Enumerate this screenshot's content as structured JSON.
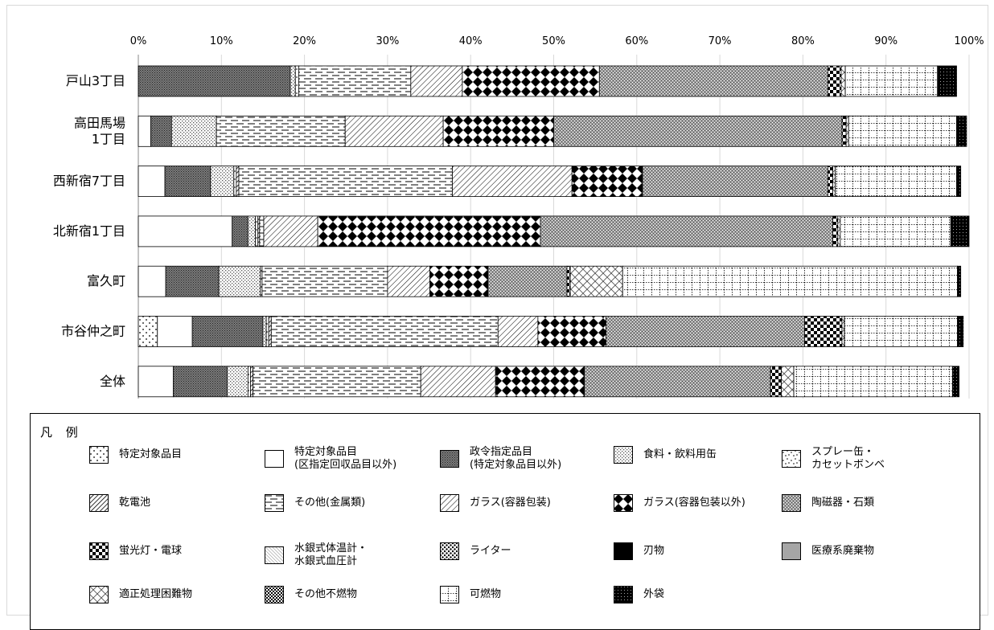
{
  "chart_data": {
    "type": "bar",
    "orientation": "horizontal",
    "stacked": "percent",
    "categories": [
      "戸山3丁目",
      "高田馬場\n1丁目",
      "西新宿7丁目",
      "北新宿1丁目",
      "富久町",
      "市谷仲之町",
      "全体"
    ],
    "xlim": [
      0,
      100
    ],
    "xticks": [
      "0%",
      "10%",
      "20%",
      "30%",
      "40%",
      "50%",
      "60%",
      "70%",
      "80%",
      "90%",
      "100%"
    ],
    "grid": true,
    "legend_position": "bottom",
    "legend_title": "凡 例",
    "series": [
      {
        "name": "特定対象品目",
        "pattern": "sparse-dots",
        "values": [
          0,
          0,
          0,
          0,
          0,
          2.3,
          0
        ]
      },
      {
        "name": "特定対象品目\n(区指定回収品目以外)",
        "pattern": "blank",
        "values": [
          0,
          1.5,
          3.2,
          11.3,
          3.3,
          4.2,
          4.2
        ]
      },
      {
        "name": "政令指定品目\n(特定対象品目以外)",
        "pattern": "dense-checker",
        "values": [
          18.3,
          2.5,
          5.5,
          1.9,
          6.4,
          8.5,
          6.5
        ]
      },
      {
        "name": "食料・飲料用缶",
        "pattern": "fine-dots",
        "values": [
          0.6,
          5.4,
          2.8,
          0.9,
          5.0,
          0.4,
          2.5
        ]
      },
      {
        "name": "スプレー缶・\nカセットボンベ",
        "pattern": "scattered-dots",
        "values": [
          0.4,
          0,
          0.3,
          0.3,
          0.2,
          0.3,
          0.3
        ]
      },
      {
        "name": "乾電池",
        "pattern": "dense-diagonal",
        "values": [
          0,
          0,
          0.3,
          0.2,
          0,
          0.3,
          0.3
        ]
      },
      {
        "name": "その他(金属類)",
        "pattern": "dashed-lines",
        "values": [
          13.5,
          15.5,
          25.7,
          0.5,
          15.1,
          27.3,
          20.2
        ]
      },
      {
        "name": "ガラス(容器包装)",
        "pattern": "wide-diagonal",
        "values": [
          6.2,
          11.8,
          14.4,
          6.5,
          5.1,
          4.8,
          9.0
        ]
      },
      {
        "name": "ガラス(容器包装以外)",
        "pattern": "diamonds",
        "values": [
          16.5,
          13.3,
          8.5,
          26.8,
          7.0,
          8.2,
          10.7
        ]
      },
      {
        "name": "陶磁器・石類",
        "pattern": "small-diamond-dots",
        "values": [
          27.5,
          34.7,
          22.3,
          35.2,
          9.5,
          23.9,
          22.4
        ]
      },
      {
        "name": "蛍光灯・電球",
        "pattern": "large-checker",
        "values": [
          1.6,
          0.5,
          0.6,
          0.6,
          0.4,
          4.5,
          1.3
        ]
      },
      {
        "name": "水銀式体温計・\n水銀式血圧計",
        "pattern": "thin-diagonal",
        "values": [
          0,
          0,
          0,
          0,
          0,
          0,
          0
        ]
      },
      {
        "name": "ライター",
        "pattern": "fuzzy-dots",
        "values": [
          0,
          0,
          0,
          0,
          0,
          0,
          0
        ]
      },
      {
        "name": "刃物",
        "pattern": "solid-black",
        "values": [
          0,
          0,
          0,
          0,
          0,
          0,
          0
        ]
      },
      {
        "name": "医療系廃棄物",
        "pattern": "solid-gray",
        "values": [
          0,
          0,
          0,
          0,
          0,
          0,
          0
        ]
      },
      {
        "name": "適正処理困難物",
        "pattern": "cross-hatch",
        "values": [
          0.5,
          0.3,
          0.3,
          0.3,
          6.3,
          0.3,
          1.5
        ]
      },
      {
        "name": "その他不燃物",
        "pattern": "checker",
        "values": [
          0,
          0,
          0,
          0,
          0,
          0,
          0
        ]
      },
      {
        "name": "可燃物",
        "pattern": "grid",
        "values": [
          11.1,
          13.0,
          14.6,
          13.3,
          40.3,
          13.6,
          19.1
        ]
      },
      {
        "name": "外袋",
        "pattern": "solid-black-dots",
        "values": [
          2.3,
          1.2,
          0.5,
          2.2,
          0.4,
          0.7,
          0.8
        ]
      }
    ]
  }
}
